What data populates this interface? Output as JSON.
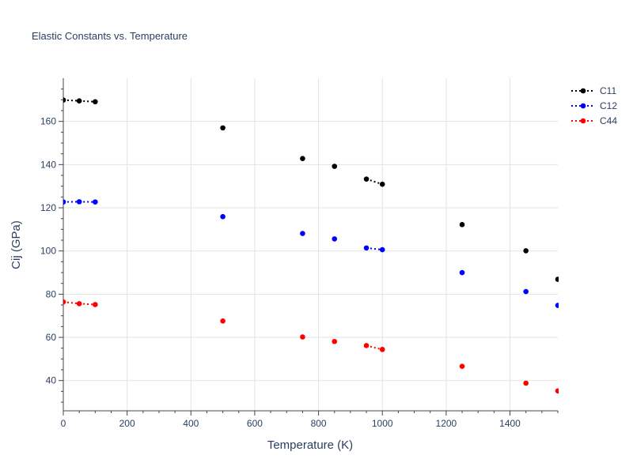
{
  "chart_data": {
    "type": "scatter",
    "title": "Elastic Constants vs. Temperature",
    "xlabel": "Temperature (K)",
    "ylabel": "Cij (GPa)",
    "xlim": [
      0,
      1550
    ],
    "ylim": [
      26,
      180
    ],
    "x_ticks": [
      0,
      200,
      400,
      600,
      800,
      1000,
      1200,
      1400
    ],
    "y_ticks": [
      40,
      60,
      80,
      100,
      120,
      140,
      160
    ],
    "grid": true,
    "legend_position": "top-right",
    "series": [
      {
        "name": "C11",
        "color": "#000000",
        "points": [
          [
            0,
            169.9
          ],
          [
            50,
            169.5
          ],
          [
            100,
            169.1
          ],
          [
            500,
            157.0
          ],
          [
            750,
            142.8
          ],
          [
            850,
            139.2
          ],
          [
            950,
            133.3
          ],
          [
            1000,
            130.9
          ],
          [
            1250,
            112.2
          ],
          [
            1450,
            100.1
          ],
          [
            1550,
            86.9
          ]
        ],
        "dotted_segments": [
          [
            0,
            1
          ],
          [
            1,
            2
          ],
          [
            6,
            7
          ]
        ]
      },
      {
        "name": "C12",
        "color": "#0000ff",
        "points": [
          [
            0,
            122.7
          ],
          [
            50,
            122.8
          ],
          [
            100,
            122.7
          ],
          [
            500,
            115.9
          ],
          [
            750,
            108.1
          ],
          [
            850,
            105.6
          ],
          [
            950,
            101.4
          ],
          [
            1000,
            100.6
          ],
          [
            1250,
            90.0
          ],
          [
            1450,
            81.2
          ],
          [
            1550,
            74.8
          ]
        ],
        "dotted_segments": [
          [
            0,
            1
          ],
          [
            1,
            2
          ],
          [
            6,
            7
          ]
        ]
      },
      {
        "name": "C44",
        "color": "#ff0000",
        "points": [
          [
            0,
            76.4
          ],
          [
            50,
            75.6
          ],
          [
            100,
            75.2
          ],
          [
            500,
            67.6
          ],
          [
            750,
            60.2
          ],
          [
            850,
            58.1
          ],
          [
            950,
            56.2
          ],
          [
            1000,
            54.4
          ],
          [
            1250,
            46.6
          ],
          [
            1450,
            38.8
          ],
          [
            1550,
            35.2
          ]
        ],
        "dotted_segments": [
          [
            0,
            1
          ],
          [
            1,
            2
          ],
          [
            6,
            7
          ]
        ]
      }
    ]
  }
}
